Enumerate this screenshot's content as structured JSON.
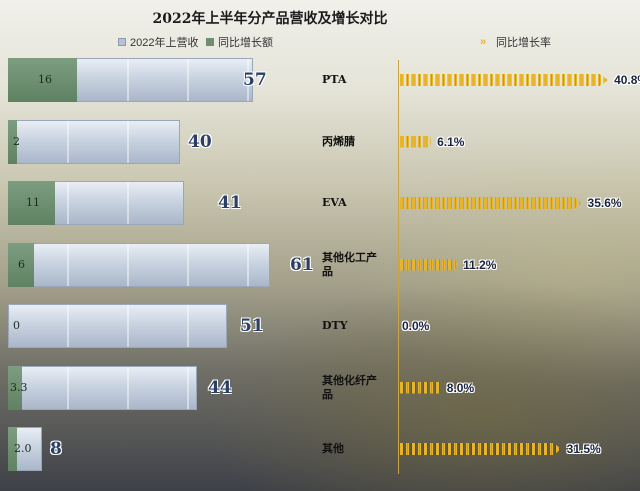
{
  "chart_data": {
    "type": "bar",
    "title": "2022年上半年分产品营收及增长对比",
    "legend": {
      "revenue": "2022年上营收",
      "increase": "同比增长额",
      "rate": "同比增长率"
    },
    "categories": [
      "PTA",
      "丙烯腈",
      "EVA",
      "其他化工产品",
      "DTY",
      "其他化纤产品",
      "其他"
    ],
    "series": [
      {
        "name": "2022年上营收",
        "values": [
          57,
          40,
          41,
          61,
          51,
          44,
          8
        ],
        "labels": [
          "57",
          "40",
          "41",
          "61",
          "51",
          "44",
          "8"
        ]
      },
      {
        "name": "同比增长额",
        "values": [
          16,
          2,
          11,
          6,
          0,
          3.3,
          2.0
        ],
        "labels": [
          "16",
          "2",
          "11",
          "6",
          "0",
          "3.3",
          "2.0"
        ]
      },
      {
        "name": "同比增长率",
        "values": [
          40.8,
          6.1,
          35.6,
          11.2,
          0.0,
          8.0,
          31.5
        ],
        "labels": [
          "40.8%",
          "6.1%",
          "35.6%",
          "11.2%",
          "0.0%",
          "8.0%",
          "31.5%"
        ]
      }
    ],
    "colors": {
      "revenue": "#b7c3d3",
      "increase": "#6b8e6f",
      "rate": "#e8b52a",
      "value_text": "#2b3e66"
    },
    "grid": false,
    "legend_placement": "top"
  }
}
